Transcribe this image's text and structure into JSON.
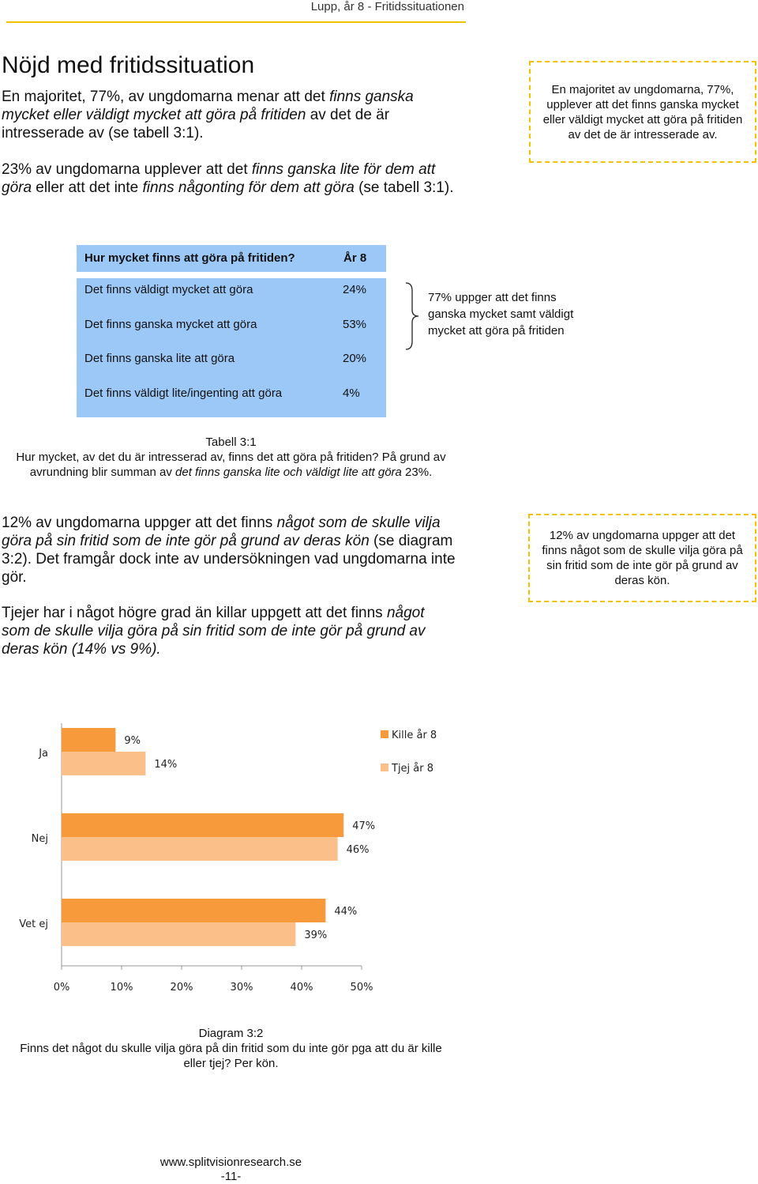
{
  "header": {
    "title": "Lupp, år 8 - Fritidssituationen"
  },
  "section": {
    "title": "Nöjd med fritidssituation",
    "para1_a": "En majoritet, 77%, av ungdomarna menar att det ",
    "para1_b": "finns ganska mycket eller väldigt mycket att göra på fritiden",
    "para1_c": " av det de är intresserade av (se tabell 3:1).",
    "para2_a": "23% av ungdomarna upplever att det ",
    "para2_b": "finns ganska lite för dem att göra",
    "para2_c": " eller att det inte ",
    "para2_d": "finns någonting för dem att göra",
    "para2_e": " (se tabell 3:1).",
    "callout1": "En majoritet av ungdomarna, 77%, upplever att det finns ganska mycket eller väldigt mycket att göra på fritiden av det de är intresserade av."
  },
  "table": {
    "header_question": "Hur mycket finns att göra på fritiden?",
    "header_year": "År 8",
    "rows": [
      {
        "label": "Det finns väldigt mycket att göra",
        "value": "24%"
      },
      {
        "label": "Det finns ganska mycket att göra",
        "value": "53%"
      },
      {
        "label": "Det finns ganska lite att göra",
        "value": "20%"
      },
      {
        "label": "Det finns väldigt lite/ingenting att göra",
        "value": "4%"
      }
    ],
    "brace_note": "77% uppger att det finns ganska mycket samt väldigt mycket att göra på fritiden",
    "caption_title": "Tabell 3:1",
    "caption_line1": "Hur mycket, av det du är intresserad av, finns det att göra på fritiden? På grund av",
    "caption_line2_a": "avrundning blir summan av ",
    "caption_line2_b": "det finns ganska lite och väldigt lite att göra",
    "caption_line2_c": " 23%."
  },
  "section2": {
    "para3_a": "12% av ungdomarna uppger att det finns ",
    "para3_b": "något som de skulle vilja göra på sin fritid som de inte gör på grund av deras kön",
    "para3_c": " (se diagram 3:2). Det framgår dock inte av undersökningen vad ungdomarna inte gör.",
    "para4_a": "Tjejer har i något högre grad än killar uppgett att det finns ",
    "para4_b": "något som de skulle vilja göra på sin fritid som de inte gör på grund av deras kön (14% vs 9%).",
    "callout2": "12% av ungdomarna uppger att det finns något som de skulle vilja göra på sin fritid som de inte gör på grund av deras kön."
  },
  "chart_data": {
    "type": "bar",
    "orientation": "horizontal",
    "categories": [
      "Ja",
      "Nej",
      "Vet ej"
    ],
    "series": [
      {
        "name": "Kille år 8",
        "values": [
          9,
          47,
          44
        ],
        "labels": [
          "9%",
          "47%",
          "44%"
        ],
        "color": "#f79a3c"
      },
      {
        "name": "Tjej år 8",
        "values": [
          14,
          46,
          39
        ],
        "labels": [
          "14%",
          "46%",
          "39%"
        ],
        "color": "#fbbf8a"
      }
    ],
    "xlim": [
      0,
      50
    ],
    "xticks": [
      "0%",
      "10%",
      "20%",
      "30%",
      "40%",
      "50%"
    ],
    "grid": false,
    "legend": "top-right",
    "caption_title": "Diagram 3:2",
    "caption_line1": "Finns det något du skulle vilja göra på din fritid som du inte gör pga att du är kille",
    "caption_line2": "eller tjej? Per kön."
  },
  "footer": {
    "url": "www.splitvisionresearch.se",
    "page": "-11-"
  }
}
